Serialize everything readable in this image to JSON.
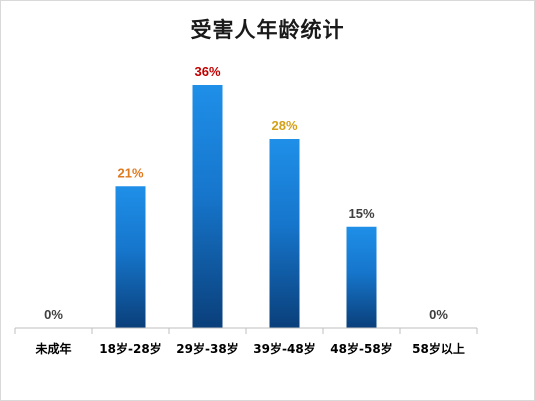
{
  "chart_data": {
    "type": "bar",
    "title": "受害人年龄统计",
    "categories": [
      "未成年",
      "18岁-28岁",
      "29岁-38岁",
      "39岁-48岁",
      "48岁-58岁",
      "58岁以上"
    ],
    "values": [
      0,
      21,
      36,
      28,
      15,
      0
    ],
    "data_labels": [
      "0%",
      "21%",
      "36%",
      "28%",
      "15%",
      "0%"
    ],
    "label_colors": [
      "#404040",
      "#e07a1f",
      "#c00000",
      "#d4a017",
      "#404040",
      "#404040"
    ],
    "bar_color_top": "#1f8fe8",
    "bar_color_bottom": "#0a3f7a",
    "ylim": [
      0,
      40
    ],
    "grid": false,
    "legend": "none",
    "xlabel": "",
    "ylabel": ""
  }
}
